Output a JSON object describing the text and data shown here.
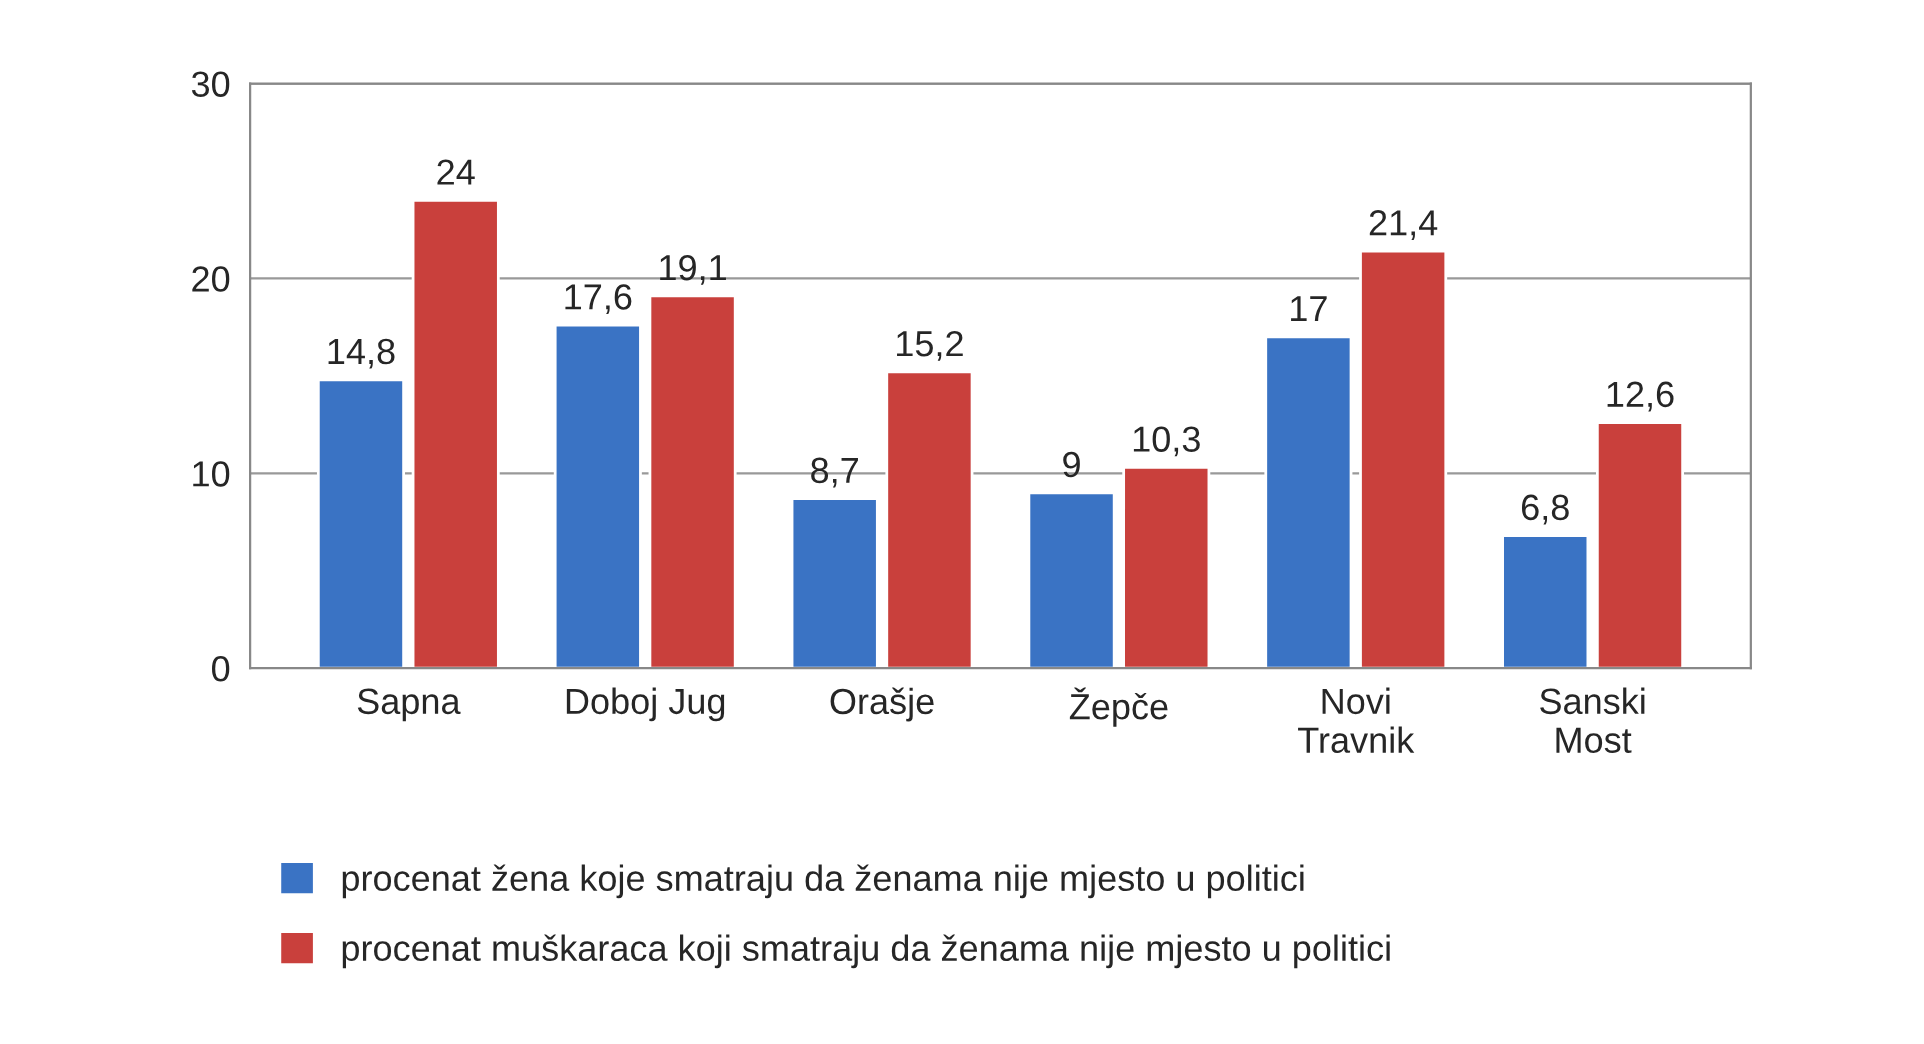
{
  "chart_data": {
    "type": "bar",
    "categories": [
      "Sapna",
      "Doboj Jug",
      "Orašje",
      "Žepče",
      "Novi\nTravnik",
      "Sanski\nMost"
    ],
    "series": [
      {
        "name": "procenat žena koje smatraju da ženama nije mjesto u politici",
        "color": "#3a73c4",
        "values": [
          14.8,
          17.6,
          8.7,
          9,
          17,
          6.8
        ],
        "value_labels": [
          "14,8",
          "17,6",
          "8,7",
          "9",
          "17",
          "6,8"
        ]
      },
      {
        "name": "procenat muškaraca koji smatraju da ženama nije mjesto u politici",
        "color": "#c9403c",
        "values": [
          24,
          19.1,
          15.2,
          10.3,
          21.4,
          12.6
        ],
        "value_labels": [
          "24",
          "19,1",
          "15,2",
          "10,3",
          "21,4",
          "12,6"
        ]
      }
    ],
    "ylim": [
      0,
      30
    ],
    "yticks": [
      0,
      10,
      20,
      30
    ],
    "grid": "y",
    "legend": "bottom"
  }
}
